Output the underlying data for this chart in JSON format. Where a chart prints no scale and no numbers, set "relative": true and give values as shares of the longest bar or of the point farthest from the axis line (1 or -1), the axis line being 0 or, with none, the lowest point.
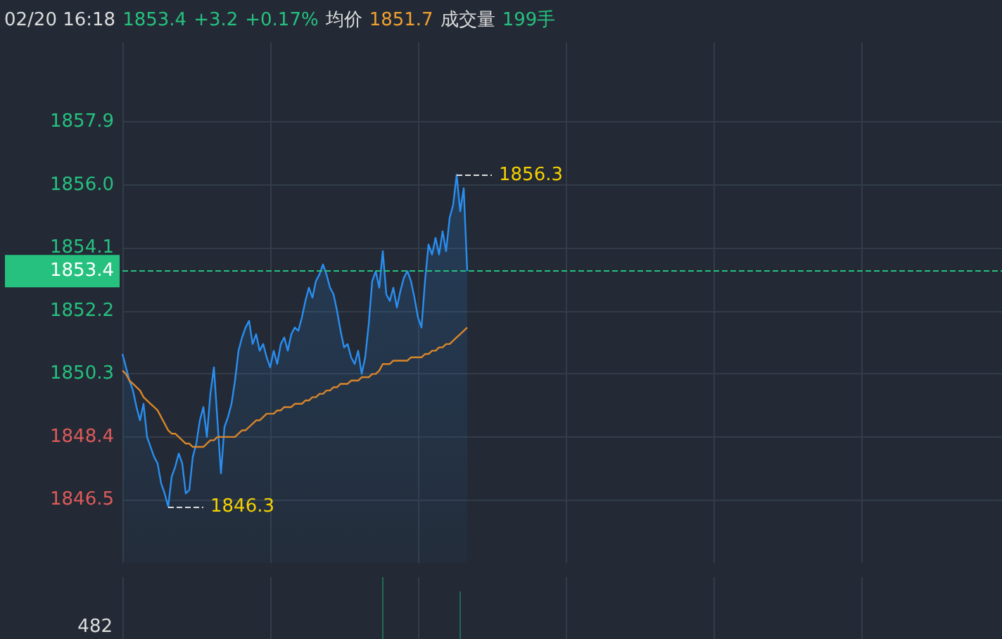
{
  "chart_data": [
    {
      "type": "area",
      "title": "02/20 16:18",
      "annotations": [
        "1853.4",
        "+3.2",
        "+0.17%",
        "均价",
        "1851.7",
        "成交量",
        "199手",
        "1846.3",
        "1856.3"
      ],
      "categories": [
        null,
        null,
        null,
        null,
        null,
        null,
        null,
        null,
        null,
        null,
        null,
        null,
        null,
        null,
        null,
        null,
        null,
        null,
        null,
        null,
        null,
        null,
        null,
        null,
        null,
        null,
        null,
        null,
        null,
        null,
        null,
        null,
        null,
        null,
        null,
        null,
        null,
        null,
        null,
        null,
        null,
        null,
        null,
        null,
        null,
        null,
        null,
        null,
        null,
        null,
        null,
        null,
        null,
        null,
        null,
        null,
        null,
        null,
        null,
        null,
        null,
        null,
        null,
        null,
        null,
        null,
        null,
        null,
        null,
        null,
        null,
        null,
        null,
        null,
        null,
        null,
        null,
        null,
        null,
        null,
        null,
        null,
        null,
        null,
        null,
        null,
        null,
        null,
        null,
        null,
        null,
        null,
        null,
        null,
        null,
        null,
        null,
        null,
        null,
        null,
        null,
        null,
        null,
        null,
        null,
        null,
        null,
        null,
        null,
        null,
        null,
        null,
        null,
        null,
        null,
        null,
        null,
        null,
        null,
        null,
        null,
        null,
        null,
        null,
        null,
        null,
        null,
        null,
        null,
        null,
        null,
        null,
        null,
        null,
        null,
        null,
        null,
        null,
        null,
        null,
        null,
        null,
        null,
        null,
        null,
        null,
        null,
        null,
        null,
        null,
        null,
        null,
        null,
        null,
        null,
        null,
        null,
        null,
        null,
        null,
        null,
        null,
        null,
        null,
        null,
        null,
        null,
        null,
        null,
        null,
        null,
        null,
        null,
        null,
        null,
        null,
        null,
        null,
        null,
        null,
        null,
        null,
        null,
        null,
        null,
        null,
        null,
        null,
        null,
        null,
        null,
        null,
        null,
        null,
        null,
        null,
        null,
        null,
        null,
        null,
        null,
        null,
        null,
        null,
        null,
        null,
        null,
        null,
        null,
        null,
        null,
        null,
        null,
        null,
        null,
        null,
        null,
        null,
        null,
        null,
        null,
        null,
        null,
        null,
        null,
        null,
        null,
        null,
        null,
        null,
        null,
        null,
        null,
        null,
        null,
        null,
        null,
        null,
        null,
        null,
        null,
        null,
        null,
        null,
        null,
        null,
        null,
        null,
        null,
        null,
        null
      ],
      "series": [
        {
          "color": "#2a8ef0",
          "values": [
            1850.9,
            1850.5,
            1850.1,
            1849.8,
            1849.3,
            1848.9,
            1849.4,
            1848.4,
            1848.1,
            1847.8,
            1847.6,
            1847.0,
            1846.7,
            1846.3,
            1847.2,
            1847.5,
            1847.9,
            1847.6,
            1846.7,
            1846.8,
            1847.8,
            1848.2,
            1848.9,
            1849.3,
            1848.4,
            1849.7,
            1850.5,
            1848.9,
            1847.3,
            1848.7,
            1849.0,
            1849.4,
            1850.1,
            1851.0,
            1851.4,
            1851.7,
            1851.9,
            1851.2,
            1851.5,
            1851.0,
            1851.2,
            1850.8,
            1850.5,
            1851.0,
            1850.6,
            1851.2,
            1851.4,
            1851.0,
            1851.5,
            1851.7,
            1851.6,
            1852.0,
            1852.5,
            1852.9,
            1852.6,
            1853.1,
            1853.3,
            1853.6,
            1853.3,
            1852.9,
            1852.7,
            1852.2,
            1851.6,
            1851.1,
            1851.2,
            1850.8,
            1850.6,
            1851.0,
            1850.3,
            1850.8,
            1851.8,
            1853.1,
            1853.4,
            1852.9,
            1854.0,
            1852.7,
            1852.5,
            1852.9,
            1852.3,
            1852.8,
            1853.2,
            1853.4,
            1853.1,
            1852.6,
            1852.0,
            1851.7,
            1853.1,
            1854.2,
            1853.9,
            1854.4,
            1853.9,
            1854.6,
            1854.0,
            1855.0,
            1855.4,
            1856.3,
            1855.2,
            1855.9,
            1853.4,
            null,
            null,
            null,
            null,
            null,
            null,
            null,
            null,
            null,
            null,
            null,
            null,
            null,
            null,
            null,
            null,
            null,
            null,
            null,
            null,
            null,
            null,
            null,
            null,
            null,
            null,
            null,
            null,
            null,
            null,
            null,
            null,
            null,
            null,
            null,
            null,
            null,
            null,
            null,
            null,
            null,
            null,
            null,
            null,
            null,
            null,
            null,
            null,
            null,
            null,
            null,
            null,
            null,
            null,
            null,
            null,
            null,
            null,
            null,
            null,
            null,
            null,
            null,
            null,
            null,
            null,
            null,
            null,
            null,
            null,
            null,
            null,
            null,
            null,
            null,
            null,
            null,
            null,
            null,
            null,
            null,
            null,
            null,
            null,
            null,
            null,
            null,
            null,
            null,
            null,
            null,
            null,
            null,
            null,
            null,
            null,
            null,
            null,
            null,
            null,
            null,
            null,
            null,
            null,
            null,
            null,
            null,
            null,
            null,
            null,
            null,
            null,
            null,
            null,
            null,
            null,
            null,
            null,
            null,
            null,
            null,
            null,
            null,
            null,
            null,
            null,
            null,
            null,
            null,
            null,
            null,
            null,
            null,
            null,
            null,
            null,
            null,
            null,
            null,
            null,
            null,
            null,
            null,
            null,
            null,
            null,
            null,
            null,
            null,
            null,
            null,
            null
          ]
        },
        {
          "type": "line",
          "color": "#d9862b",
          "values": [
            1850.4,
            1850.3,
            1850.1,
            1850.0,
            1849.9,
            1849.8,
            1849.6,
            1849.5,
            1849.4,
            1849.3,
            1849.2,
            1849.0,
            1848.8,
            1848.6,
            1848.5,
            1848.5,
            1848.4,
            1848.3,
            1848.2,
            1848.2,
            1848.1,
            1848.1,
            1848.1,
            1848.1,
            1848.2,
            1848.3,
            1848.3,
            1848.4,
            1848.4,
            1848.4,
            1848.4,
            1848.4,
            1848.4,
            1848.5,
            1848.6,
            1848.6,
            1848.7,
            1848.8,
            1848.9,
            1848.9,
            1849.0,
            1849.1,
            1849.1,
            1849.1,
            1849.2,
            1849.2,
            1849.3,
            1849.3,
            1849.3,
            1849.4,
            1849.4,
            1849.4,
            1849.5,
            1849.5,
            1849.6,
            1849.6,
            1849.7,
            1849.7,
            1849.8,
            1849.8,
            1849.9,
            1849.9,
            1850.0,
            1850.0,
            1850.0,
            1850.1,
            1850.1,
            1850.1,
            1850.2,
            1850.2,
            1850.2,
            1850.3,
            1850.3,
            1850.4,
            1850.6,
            1850.6,
            1850.6,
            1850.7,
            1850.7,
            1850.7,
            1850.7,
            1850.7,
            1850.8,
            1850.8,
            1850.8,
            1850.8,
            1850.9,
            1850.9,
            1851.0,
            1851.0,
            1851.1,
            1851.1,
            1851.2,
            1851.2,
            1851.3,
            1851.4,
            1851.5,
            1851.6,
            1851.7,
            null,
            null,
            null,
            null,
            null,
            null,
            null,
            null,
            null,
            null,
            null,
            null,
            null,
            null,
            null,
            null,
            null,
            null,
            null,
            null,
            null,
            null,
            null,
            null,
            null,
            null,
            null,
            null,
            null,
            null,
            null,
            null,
            null,
            null,
            null,
            null,
            null,
            null,
            null,
            null,
            null,
            null,
            null,
            null,
            null,
            null,
            null,
            null,
            null,
            null,
            null,
            null,
            null,
            null,
            null,
            null,
            null,
            null,
            null,
            null,
            null,
            null,
            null,
            null,
            null,
            null,
            null,
            null,
            null,
            null,
            null,
            null,
            null,
            null,
            null,
            null,
            null,
            null,
            null,
            null,
            null,
            null,
            null,
            null,
            null,
            null,
            null,
            null,
            null,
            null,
            null,
            null,
            null,
            null,
            null,
            null,
            null,
            null,
            null,
            null,
            null,
            null,
            null,
            null,
            null,
            null,
            null,
            null,
            null,
            null,
            null,
            null,
            null,
            null,
            null,
            null,
            null,
            null,
            null,
            null,
            null,
            null,
            null,
            null,
            null,
            null,
            null,
            null,
            null,
            null,
            null,
            null,
            null,
            null,
            null,
            null,
            null,
            null,
            null,
            null,
            null,
            null,
            null,
            null,
            null,
            null,
            null,
            null,
            null,
            null,
            null,
            null
          ]
        }
      ],
      "ylim": [
        1844.6,
        1860.3
      ],
      "yticks": [
        1846.5,
        1848.4,
        1850.3,
        1852.2,
        1854.1,
        {
          "value": 1856,
          "label": "1856.0"
        },
        1857.9
      ],
      "ref_lines": [
        {
          "axis": "y",
          "value": 1853.4,
          "label": "1853.4",
          "color": "#26c17f",
          "line_style": "dashed"
        }
      ],
      "grid": true,
      "tick_labels": "y"
    },
    {
      "type": "bar",
      "relative": true,
      "color": "#1f6b55",
      "annotations": [
        "482"
      ],
      "categories": [
        null,
        null,
        null,
        null,
        null,
        null,
        null,
        null,
        null,
        null,
        null,
        null,
        null,
        null,
        null,
        null,
        null,
        null,
        null,
        null,
        null,
        null,
        null,
        null,
        null,
        null,
        null,
        null,
        null,
        null,
        null,
        null,
        null,
        null,
        null,
        null,
        null,
        null,
        null,
        null,
        null,
        null,
        null,
        null,
        null,
        null,
        null,
        null,
        null,
        null,
        null,
        null,
        null,
        null,
        null,
        null,
        null,
        null,
        null,
        null,
        null,
        null,
        null,
        null,
        null,
        null,
        null,
        null,
        null,
        null,
        null,
        null,
        null,
        null,
        null,
        null,
        null,
        null,
        null,
        null,
        null,
        null,
        null,
        null,
        null,
        null,
        null,
        null,
        null,
        null,
        null,
        null,
        null,
        null,
        null,
        null,
        null,
        null,
        null,
        null,
        null,
        null,
        null,
        null,
        null,
        null,
        null,
        null,
        null,
        null,
        null,
        null,
        null,
        null,
        null,
        null,
        null,
        null,
        null,
        null,
        null,
        null,
        null,
        null,
        null,
        null,
        null,
        null,
        null,
        null,
        null,
        null,
        null,
        null,
        null,
        null,
        null,
        null,
        null,
        null,
        null,
        null,
        null,
        null,
        null,
        null,
        null,
        null,
        null,
        null,
        null,
        null,
        null,
        null,
        null,
        null,
        null,
        null,
        null,
        null,
        null,
        null,
        null,
        null,
        null,
        null,
        null,
        null,
        null,
        null,
        null,
        null,
        null,
        null,
        null,
        null,
        null,
        null,
        null,
        null,
        null,
        null,
        null,
        null,
        null,
        null,
        null,
        null,
        null,
        null,
        null,
        null,
        null,
        null,
        null,
        null,
        null,
        null,
        null,
        null,
        null,
        null,
        null,
        null,
        null,
        null,
        null,
        null,
        null,
        null,
        null,
        null,
        null,
        null,
        null,
        null,
        null,
        null,
        null,
        null,
        null,
        null,
        null,
        null,
        null,
        null,
        null,
        null,
        null,
        null,
        null,
        null,
        null,
        null,
        null,
        null,
        null,
        null,
        null,
        null,
        null,
        null,
        null,
        null,
        null,
        null,
        null,
        null,
        null,
        null,
        null
      ],
      "values": [
        null,
        null,
        null,
        null,
        null,
        null,
        null,
        null,
        null,
        null,
        null,
        null,
        null,
        null,
        null,
        null,
        null,
        null,
        null,
        null,
        null,
        null,
        null,
        null,
        null,
        null,
        null,
        null,
        null,
        null,
        null,
        null,
        null,
        null,
        null,
        null,
        null,
        null,
        null,
        null,
        null,
        null,
        null,
        null,
        null,
        null,
        null,
        null,
        null,
        null,
        null,
        null,
        null,
        null,
        null,
        null,
        null,
        null,
        null,
        null,
        null,
        null,
        null,
        null,
        null,
        null,
        null,
        null,
        null,
        null,
        null,
        null,
        null,
        null,
        1,
        null,
        null,
        null,
        null,
        null,
        null,
        null,
        null,
        null,
        null,
        null,
        null,
        null,
        null,
        null,
        null,
        null,
        null,
        null,
        null,
        null,
        0.77,
        null,
        null,
        null,
        null,
        null,
        null,
        null,
        null,
        null,
        null,
        null,
        null,
        null,
        null,
        null,
        null,
        null,
        null,
        null,
        null,
        null,
        null,
        null,
        null,
        null,
        null,
        null,
        null,
        null,
        null,
        null,
        null,
        null,
        null,
        null,
        null,
        null,
        null,
        null,
        null,
        null,
        null,
        null,
        null,
        null,
        null,
        null,
        null,
        null,
        null,
        null,
        null,
        null,
        null,
        null,
        null,
        null,
        null,
        null,
        null,
        null,
        null,
        null,
        null,
        null,
        null,
        null,
        null,
        null,
        null,
        null,
        null,
        null,
        null,
        null,
        null,
        null,
        null,
        null,
        null,
        null,
        null,
        null,
        null,
        null,
        null,
        null,
        null,
        null,
        null,
        null,
        null,
        null,
        null,
        null,
        null,
        null,
        null,
        null,
        null,
        null,
        null,
        null,
        null,
        null,
        null,
        null,
        null,
        null,
        null,
        null,
        null,
        null,
        null,
        null,
        null,
        null,
        null,
        null,
        null,
        null,
        null,
        null,
        null,
        null,
        null,
        null,
        null,
        null,
        null,
        null,
        null,
        null,
        null,
        null,
        null,
        null,
        null,
        null,
        null,
        null,
        null,
        null,
        null,
        null,
        null,
        null,
        null,
        null,
        null,
        null,
        null,
        null,
        null
      ],
      "grid": "x",
      "tick_labels": false
    }
  ]
}
